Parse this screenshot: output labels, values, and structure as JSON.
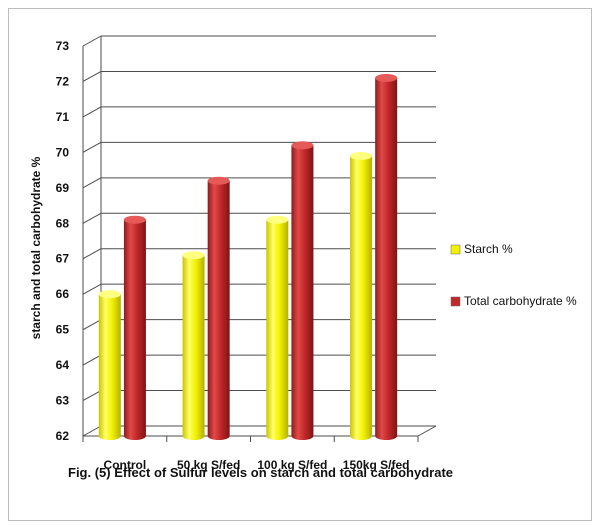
{
  "chart_data": {
    "type": "bar",
    "title": "",
    "caption": "Fig. (5) Effect of Sulfur levels on starch and total carbohydrate",
    "ylabel": "starch and total carbohydrate %",
    "xlabel": "",
    "categories": [
      "Control",
      "50 kg S/fed",
      "100 kg S/fed",
      "150kg S/fed"
    ],
    "ylim": [
      62,
      73
    ],
    "yticks": [
      62,
      63,
      64,
      65,
      66,
      67,
      68,
      69,
      70,
      71,
      72,
      73
    ],
    "grid": true,
    "legend_position": "right",
    "series": [
      {
        "name": "Starch %",
        "values": [
          66.0,
          67.1,
          68.1,
          69.9
        ],
        "color": "#f2f200"
      },
      {
        "name": "Total carbohydrate %",
        "values": [
          68.1,
          69.2,
          70.2,
          72.1
        ],
        "color": "#c0282a"
      }
    ]
  }
}
